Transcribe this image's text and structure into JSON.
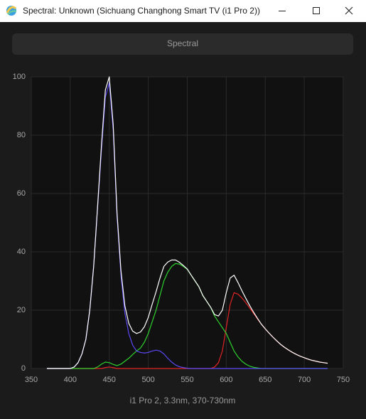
{
  "window": {
    "title": "Spectral: Unknown (Sichuang Changhong Smart TV (i1 Pro 2))"
  },
  "button": {
    "label": "Spectral"
  },
  "chart_data": {
    "type": "line",
    "caption": "i1 Pro 2, 3.3nm, 370-730nm",
    "x": [
      370,
      375,
      380,
      385,
      390,
      395,
      400,
      405,
      410,
      415,
      420,
      425,
      430,
      435,
      440,
      445,
      450,
      455,
      460,
      465,
      470,
      475,
      480,
      485,
      490,
      495,
      500,
      505,
      510,
      515,
      520,
      525,
      530,
      535,
      540,
      545,
      550,
      555,
      560,
      565,
      570,
      575,
      580,
      585,
      590,
      595,
      600,
      605,
      610,
      615,
      620,
      625,
      630,
      635,
      640,
      645,
      650,
      655,
      660,
      665,
      670,
      675,
      680,
      685,
      690,
      695,
      700,
      705,
      710,
      715,
      720,
      725,
      730
    ],
    "xlim": [
      350,
      750
    ],
    "xticks": [
      350,
      400,
      450,
      500,
      550,
      600,
      650,
      700,
      750
    ],
    "ylim": [
      0,
      100
    ],
    "yticks": [
      0,
      20,
      40,
      60,
      80,
      100
    ],
    "grid": true,
    "series": [
      {
        "color": "#e02424",
        "values": [
          0,
          0,
          0,
          0,
          0,
          0,
          0,
          0,
          0,
          0,
          0,
          0,
          0,
          0,
          0,
          0.3,
          0.5,
          0.3,
          0,
          0,
          0,
          0,
          0,
          0,
          0,
          0,
          0,
          0,
          0,
          0,
          0,
          0,
          0,
          0,
          0,
          0,
          0,
          0,
          0,
          0,
          0,
          0,
          0,
          0.5,
          2,
          6,
          14,
          22,
          26,
          25.5,
          24.2,
          22.6,
          20.8,
          18.9,
          17,
          15.2,
          13.6,
          12.1,
          10.7,
          9.4,
          8.2,
          7.2,
          6.3,
          5.5,
          4.8,
          4.2,
          3.7,
          3.2,
          2.8,
          2.5,
          2.2,
          2,
          1.8
        ]
      },
      {
        "color": "#2ed22e",
        "values": [
          0,
          0,
          0,
          0,
          0,
          0,
          0,
          0,
          0,
          0,
          0,
          0,
          0,
          0.5,
          1.5,
          2.2,
          2,
          1.4,
          1,
          1.5,
          2.5,
          3.5,
          4.8,
          6,
          7,
          9,
          12,
          16,
          20,
          25,
          30,
          33,
          35,
          36,
          35.8,
          35,
          34,
          32,
          30,
          28,
          25,
          23,
          21,
          18,
          16,
          14,
          12,
          9,
          6,
          4,
          2.5,
          1.5,
          0.8,
          0.4,
          0.2,
          0,
          0,
          0,
          0,
          0,
          0,
          0,
          0,
          0,
          0,
          0,
          0,
          0,
          0,
          0,
          0,
          0,
          0
        ]
      },
      {
        "color": "#5a48f2",
        "values": [
          0,
          0,
          0,
          0,
          0,
          0,
          0,
          0.5,
          2,
          5,
          10,
          20,
          35,
          55,
          75,
          93,
          98,
          82,
          52,
          32,
          19,
          12,
          8,
          6,
          5.5,
          5.3,
          5.5,
          6,
          6.3,
          6,
          5,
          3.5,
          2.2,
          1.2,
          0.6,
          0.3,
          0.1,
          0,
          0,
          0,
          0,
          0,
          0,
          0,
          0,
          0,
          0,
          0,
          0,
          0,
          0,
          0,
          0,
          0,
          0,
          0,
          0,
          0,
          0,
          0,
          0,
          0,
          0,
          0,
          0,
          0,
          0,
          0,
          0,
          0,
          0,
          0,
          0
        ]
      },
      {
        "color": "#ffffff",
        "values": [
          0,
          0,
          0,
          0,
          0,
          0,
          0,
          0.5,
          2,
          5,
          10,
          20,
          35,
          55.5,
          76.5,
          95.5,
          100,
          83.7,
          53,
          33.5,
          21.5,
          15.5,
          12.8,
          12,
          12.5,
          14.3,
          17.5,
          22,
          26.3,
          31,
          35,
          36.5,
          37.2,
          37.2,
          36.4,
          35.3,
          34.1,
          32,
          30,
          28,
          25,
          23,
          21,
          18.5,
          18,
          20,
          26,
          31,
          32,
          29.5,
          26.7,
          24.1,
          21.6,
          19.3,
          17.2,
          15.2,
          13.6,
          12.1,
          10.7,
          9.4,
          8.2,
          7.2,
          6.3,
          5.5,
          4.8,
          4.2,
          3.7,
          3.2,
          2.8,
          2.5,
          2.2,
          2,
          1.8
        ]
      }
    ]
  }
}
